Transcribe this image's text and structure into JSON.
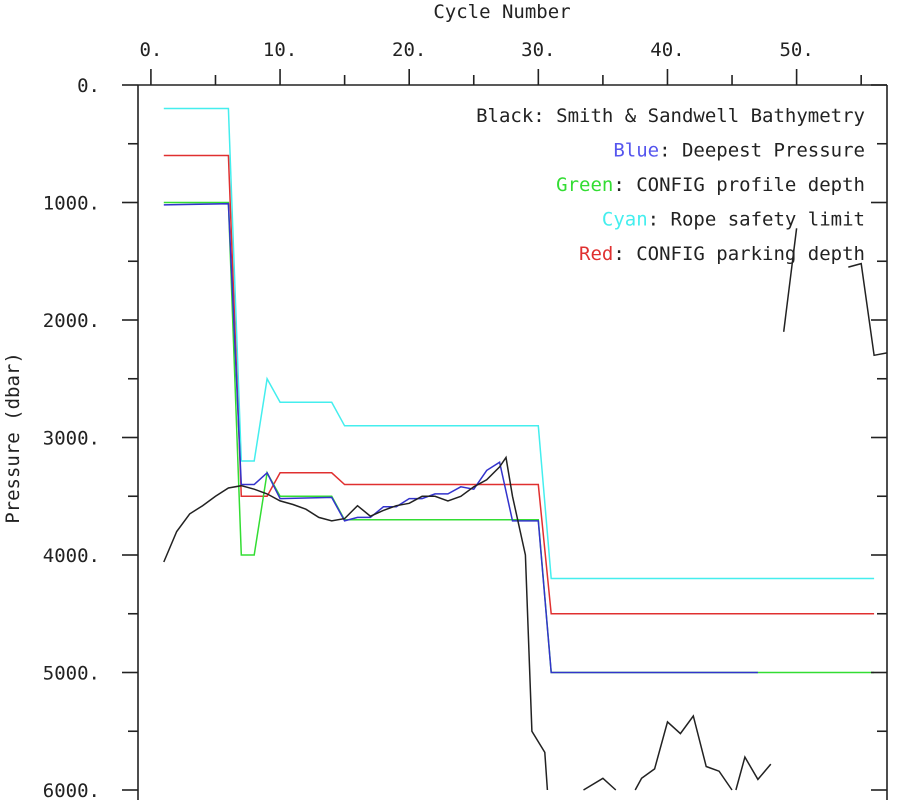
{
  "chart_data": {
    "type": "line",
    "xlabel": "Cycle Number",
    "ylabel": "Pressure (dbar)",
    "xlim": [
      -1,
      57
    ],
    "ylim": [
      0,
      6000
    ],
    "y_inverted": true,
    "x_axis_position": "top",
    "grid": false,
    "legend_placement": "top-right",
    "x_ticks": [
      {
        "value": 0,
        "label": "0."
      },
      {
        "value": 10,
        "label": "10."
      },
      {
        "value": 20,
        "label": "20."
      },
      {
        "value": 30,
        "label": "30."
      },
      {
        "value": 40,
        "label": "40."
      },
      {
        "value": 50,
        "label": "50."
      }
    ],
    "x_minor_ticks": [
      5,
      15,
      25,
      35,
      45,
      55
    ],
    "y_ticks": [
      {
        "value": 0,
        "label": "0."
      },
      {
        "value": 1000,
        "label": "1000."
      },
      {
        "value": 2000,
        "label": "2000."
      },
      {
        "value": 3000,
        "label": "3000."
      },
      {
        "value": 4000,
        "label": "4000."
      },
      {
        "value": 5000,
        "label": "5000."
      },
      {
        "value": 6000,
        "label": "6000."
      }
    ],
    "y_minor_ticks": [
      500,
      1500,
      2500,
      3500,
      4500,
      5500
    ],
    "legend": [
      {
        "prefix": "Black",
        "rest": ": Smith & Sandwell Bathymetry",
        "color": "#222222"
      },
      {
        "prefix": "Blue",
        "rest": ": Deepest Pressure",
        "color": "#5555ee"
      },
      {
        "prefix": "Green",
        "rest": ": CONFIG profile depth",
        "color": "#33dd33"
      },
      {
        "prefix": "Cyan",
        "rest": ": Rope safety limit",
        "color": "#44eeee"
      },
      {
        "prefix": "Red",
        "rest": ": CONFIG parking depth",
        "color": "#e03030"
      }
    ],
    "series": [
      {
        "id": "cyan",
        "color": "#44eeee",
        "points": [
          [
            1,
            200
          ],
          [
            6,
            200
          ],
          [
            7,
            3200
          ],
          [
            8,
            3200
          ],
          [
            9,
            2500
          ],
          [
            10,
            2700
          ],
          [
            14,
            2700
          ],
          [
            15,
            2900
          ],
          [
            30,
            2900
          ],
          [
            31,
            4200
          ],
          [
            56,
            4200
          ]
        ]
      },
      {
        "id": "red",
        "color": "#e03030",
        "points": [
          [
            1,
            600
          ],
          [
            6,
            600
          ],
          [
            7,
            3500
          ],
          [
            9,
            3500
          ],
          [
            10,
            3300
          ],
          [
            14,
            3300
          ],
          [
            15,
            3400
          ],
          [
            30,
            3400
          ],
          [
            31,
            4500
          ],
          [
            56,
            4500
          ]
        ]
      },
      {
        "id": "green",
        "color": "#33dd33",
        "points": [
          [
            1,
            1000
          ],
          [
            6,
            1000
          ],
          [
            7,
            4000
          ],
          [
            8,
            4000
          ],
          [
            9,
            3300
          ],
          [
            10,
            3500
          ],
          [
            14,
            3500
          ],
          [
            15,
            3700
          ],
          [
            30,
            3700
          ],
          [
            31,
            5000
          ],
          [
            56,
            5000
          ]
        ]
      },
      {
        "id": "blue",
        "color": "#3333cc",
        "points": [
          [
            1,
            1020
          ],
          [
            6,
            1010
          ],
          [
            7,
            3400
          ],
          [
            8,
            3400
          ],
          [
            9,
            3300
          ],
          [
            10,
            3520
          ],
          [
            14,
            3510
          ],
          [
            15,
            3710
          ],
          [
            16,
            3680
          ],
          [
            17,
            3680
          ],
          [
            18,
            3590
          ],
          [
            19,
            3590
          ],
          [
            20,
            3520
          ],
          [
            21,
            3520
          ],
          [
            22,
            3480
          ],
          [
            23,
            3480
          ],
          [
            24,
            3420
          ],
          [
            25,
            3440
          ],
          [
            26,
            3280
          ],
          [
            27,
            3210
          ],
          [
            28,
            3710
          ],
          [
            30,
            3710
          ],
          [
            31,
            5000
          ],
          [
            47,
            5000
          ]
        ]
      },
      {
        "id": "black-main",
        "color": "#222222",
        "points": [
          [
            1,
            4060
          ],
          [
            2,
            3800
          ],
          [
            3,
            3650
          ],
          [
            4,
            3580
          ],
          [
            5,
            3500
          ],
          [
            6,
            3430
          ],
          [
            7,
            3410
          ],
          [
            8,
            3440
          ],
          [
            9,
            3480
          ],
          [
            10,
            3540
          ],
          [
            11,
            3570
          ],
          [
            12,
            3610
          ],
          [
            13,
            3680
          ],
          [
            14,
            3710
          ],
          [
            15,
            3690
          ],
          [
            16,
            3580
          ],
          [
            17,
            3670
          ],
          [
            18,
            3620
          ],
          [
            19,
            3580
          ],
          [
            20,
            3560
          ],
          [
            21,
            3500
          ],
          [
            22,
            3500
          ],
          [
            23,
            3540
          ],
          [
            24,
            3500
          ],
          [
            25,
            3420
          ],
          [
            26,
            3360
          ],
          [
            27,
            3250
          ],
          [
            27.5,
            3170
          ],
          [
            28,
            3500
          ],
          [
            29,
            4000
          ],
          [
            29.5,
            5500
          ],
          [
            30.5,
            5680
          ],
          [
            30.7,
            6000
          ]
        ]
      },
      {
        "id": "black-bottom",
        "color": "#222222",
        "points": [
          [
            33.5,
            6000
          ],
          [
            35,
            5900
          ],
          [
            36,
            6000
          ]
        ]
      },
      {
        "id": "black-bottom-2",
        "color": "#222222",
        "points": [
          [
            37.5,
            6000
          ],
          [
            38,
            5900
          ],
          [
            39,
            5820
          ],
          [
            40,
            5420
          ],
          [
            41,
            5520
          ],
          [
            42,
            5370
          ],
          [
            43,
            5800
          ],
          [
            44,
            5840
          ],
          [
            45,
            6000
          ]
        ]
      },
      {
        "id": "black-bottom-3",
        "color": "#222222",
        "points": [
          [
            45.3,
            6000
          ],
          [
            46,
            5720
          ],
          [
            47,
            5910
          ],
          [
            48,
            5780
          ]
        ]
      },
      {
        "id": "black-right-1",
        "color": "#222222",
        "points": [
          [
            49,
            2100
          ],
          [
            50,
            1220
          ]
        ]
      },
      {
        "id": "black-right-2",
        "color": "#222222",
        "points": [
          [
            54,
            1550
          ],
          [
            55,
            1520
          ],
          [
            56,
            2300
          ],
          [
            57,
            2280
          ]
        ]
      }
    ]
  }
}
